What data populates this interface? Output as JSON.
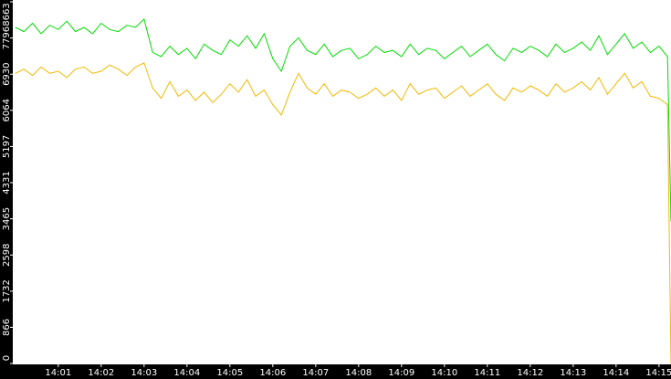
{
  "chart_data": {
    "type": "line",
    "x": [
      0.0,
      0.2,
      0.4,
      0.6,
      0.8,
      1.0,
      1.2,
      1.4,
      1.6,
      1.8,
      2.0,
      2.2,
      2.4,
      2.6,
      2.8,
      3.0,
      3.2,
      3.4,
      3.6,
      3.8,
      4.0,
      4.2,
      4.4,
      4.6,
      4.8,
      5.0,
      5.2,
      5.4,
      5.6,
      5.8,
      6.0,
      6.2,
      6.4,
      6.6,
      6.8,
      7.0,
      7.2,
      7.4,
      7.6,
      7.8,
      8.0,
      8.2,
      8.4,
      8.6,
      8.8,
      9.0,
      9.2,
      9.4,
      9.6,
      9.8,
      10.0,
      10.2,
      10.4,
      10.6,
      10.8,
      11.0,
      11.2,
      11.4,
      11.6,
      11.8,
      12.0,
      12.2,
      12.4,
      12.6,
      12.8,
      13.0,
      13.2,
      13.4,
      13.6,
      13.8,
      14.0,
      14.2,
      14.4,
      14.6,
      14.8,
      15.0,
      15.2,
      15.28
    ],
    "series": [
      {
        "color": "#00dd00",
        "values": [
          8050,
          7950,
          8150,
          7900,
          8100,
          8000,
          8200,
          7950,
          8050,
          7900,
          8150,
          8000,
          7950,
          8100,
          8050,
          8250,
          7450,
          7350,
          7600,
          7400,
          7550,
          7300,
          7650,
          7500,
          7400,
          7750,
          7600,
          7850,
          7550,
          7900,
          7300,
          7000,
          7600,
          7800,
          7500,
          7400,
          7650,
          7350,
          7500,
          7550,
          7300,
          7400,
          7600,
          7450,
          7500,
          7350,
          7650,
          7400,
          7550,
          7500,
          7300,
          7450,
          7600,
          7350,
          7500,
          7650,
          7400,
          7250,
          7550,
          7450,
          7600,
          7500,
          7350,
          7650,
          7450,
          7550,
          7700,
          7500,
          7850,
          7400,
          7650,
          7900,
          7550,
          7700,
          7450,
          7600,
          7350,
          3400
        ]
      },
      {
        "color": "#f2b800",
        "values": [
          6950,
          7050,
          6900,
          7100,
          6950,
          7000,
          6850,
          7050,
          7100,
          6950,
          7000,
          7150,
          7050,
          6900,
          7100,
          7200,
          6600,
          6350,
          6750,
          6400,
          6550,
          6300,
          6500,
          6250,
          6450,
          6700,
          6500,
          6800,
          6400,
          6550,
          6200,
          5950,
          6500,
          6950,
          6600,
          6450,
          6700,
          6400,
          6550,
          6500,
          6350,
          6450,
          6600,
          6400,
          6550,
          6300,
          6700,
          6450,
          6550,
          6600,
          6350,
          6500,
          6650,
          6400,
          6550,
          6700,
          6450,
          6300,
          6600,
          6500,
          6650,
          6550,
          6400,
          6700,
          6500,
          6600,
          6750,
          6550,
          6850,
          6450,
          6700,
          6950,
          6600,
          6750,
          6400,
          6350,
          6200,
          0
        ]
      }
    ],
    "xlim": [
      -0.06,
      15.28
    ],
    "xticks": [
      {
        "value": 1,
        "label": "14:01"
      },
      {
        "value": 2,
        "label": "14:02"
      },
      {
        "value": 3,
        "label": "14:03"
      },
      {
        "value": 4,
        "label": "14:04"
      },
      {
        "value": 5,
        "label": "14:05"
      },
      {
        "value": 6,
        "label": "14:06"
      },
      {
        "value": 7,
        "label": "14:07"
      },
      {
        "value": 8,
        "label": "14:08"
      },
      {
        "value": 9,
        "label": "14:09"
      },
      {
        "value": 10,
        "label": "14:10"
      },
      {
        "value": 11,
        "label": "14:11"
      },
      {
        "value": 12,
        "label": "14:12"
      },
      {
        "value": 13,
        "label": "14:13"
      },
      {
        "value": 14,
        "label": "14:14"
      },
      {
        "value": 15,
        "label": "14:15"
      }
    ],
    "ylim": [
      0,
      8663
    ],
    "yticks": [
      0,
      866,
      1732,
      2598,
      3465,
      4331,
      5197,
      6064,
      6930,
      7796,
      8663
    ]
  }
}
